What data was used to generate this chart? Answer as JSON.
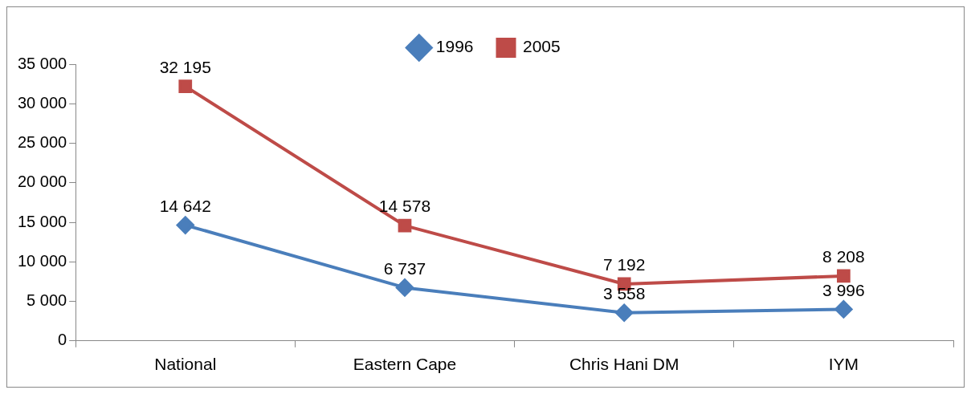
{
  "chart_data": {
    "type": "line",
    "categories": [
      "National",
      "Eastern Cape",
      "Chris Hani DM",
      "IYM"
    ],
    "series": [
      {
        "name": "1996",
        "color": "#4a7ebb",
        "marker": "diamond",
        "values": [
          14642,
          6737,
          3558,
          3996
        ],
        "value_labels": [
          "14 642",
          "6 737",
          "3 558",
          "3 996"
        ]
      },
      {
        "name": "2005",
        "color": "#be4b48",
        "marker": "square",
        "values": [
          32195,
          14578,
          7192,
          8208
        ],
        "value_labels": [
          "32 195",
          "14 578",
          "7 192",
          "8 208"
        ]
      }
    ],
    "ylim": [
      0,
      35000
    ],
    "yticks": [
      {
        "value": 0,
        "label": "0"
      },
      {
        "value": 5000,
        "label": "5 000"
      },
      {
        "value": 10000,
        "label": "10 000"
      },
      {
        "value": 15000,
        "label": "15 000"
      },
      {
        "value": 20000,
        "label": "20 000"
      },
      {
        "value": 25000,
        "label": "25 000"
      },
      {
        "value": 30000,
        "label": "30 000"
      },
      {
        "value": 35000,
        "label": "35 000"
      }
    ],
    "grid": false,
    "legend": "top",
    "line_style": "solid"
  }
}
